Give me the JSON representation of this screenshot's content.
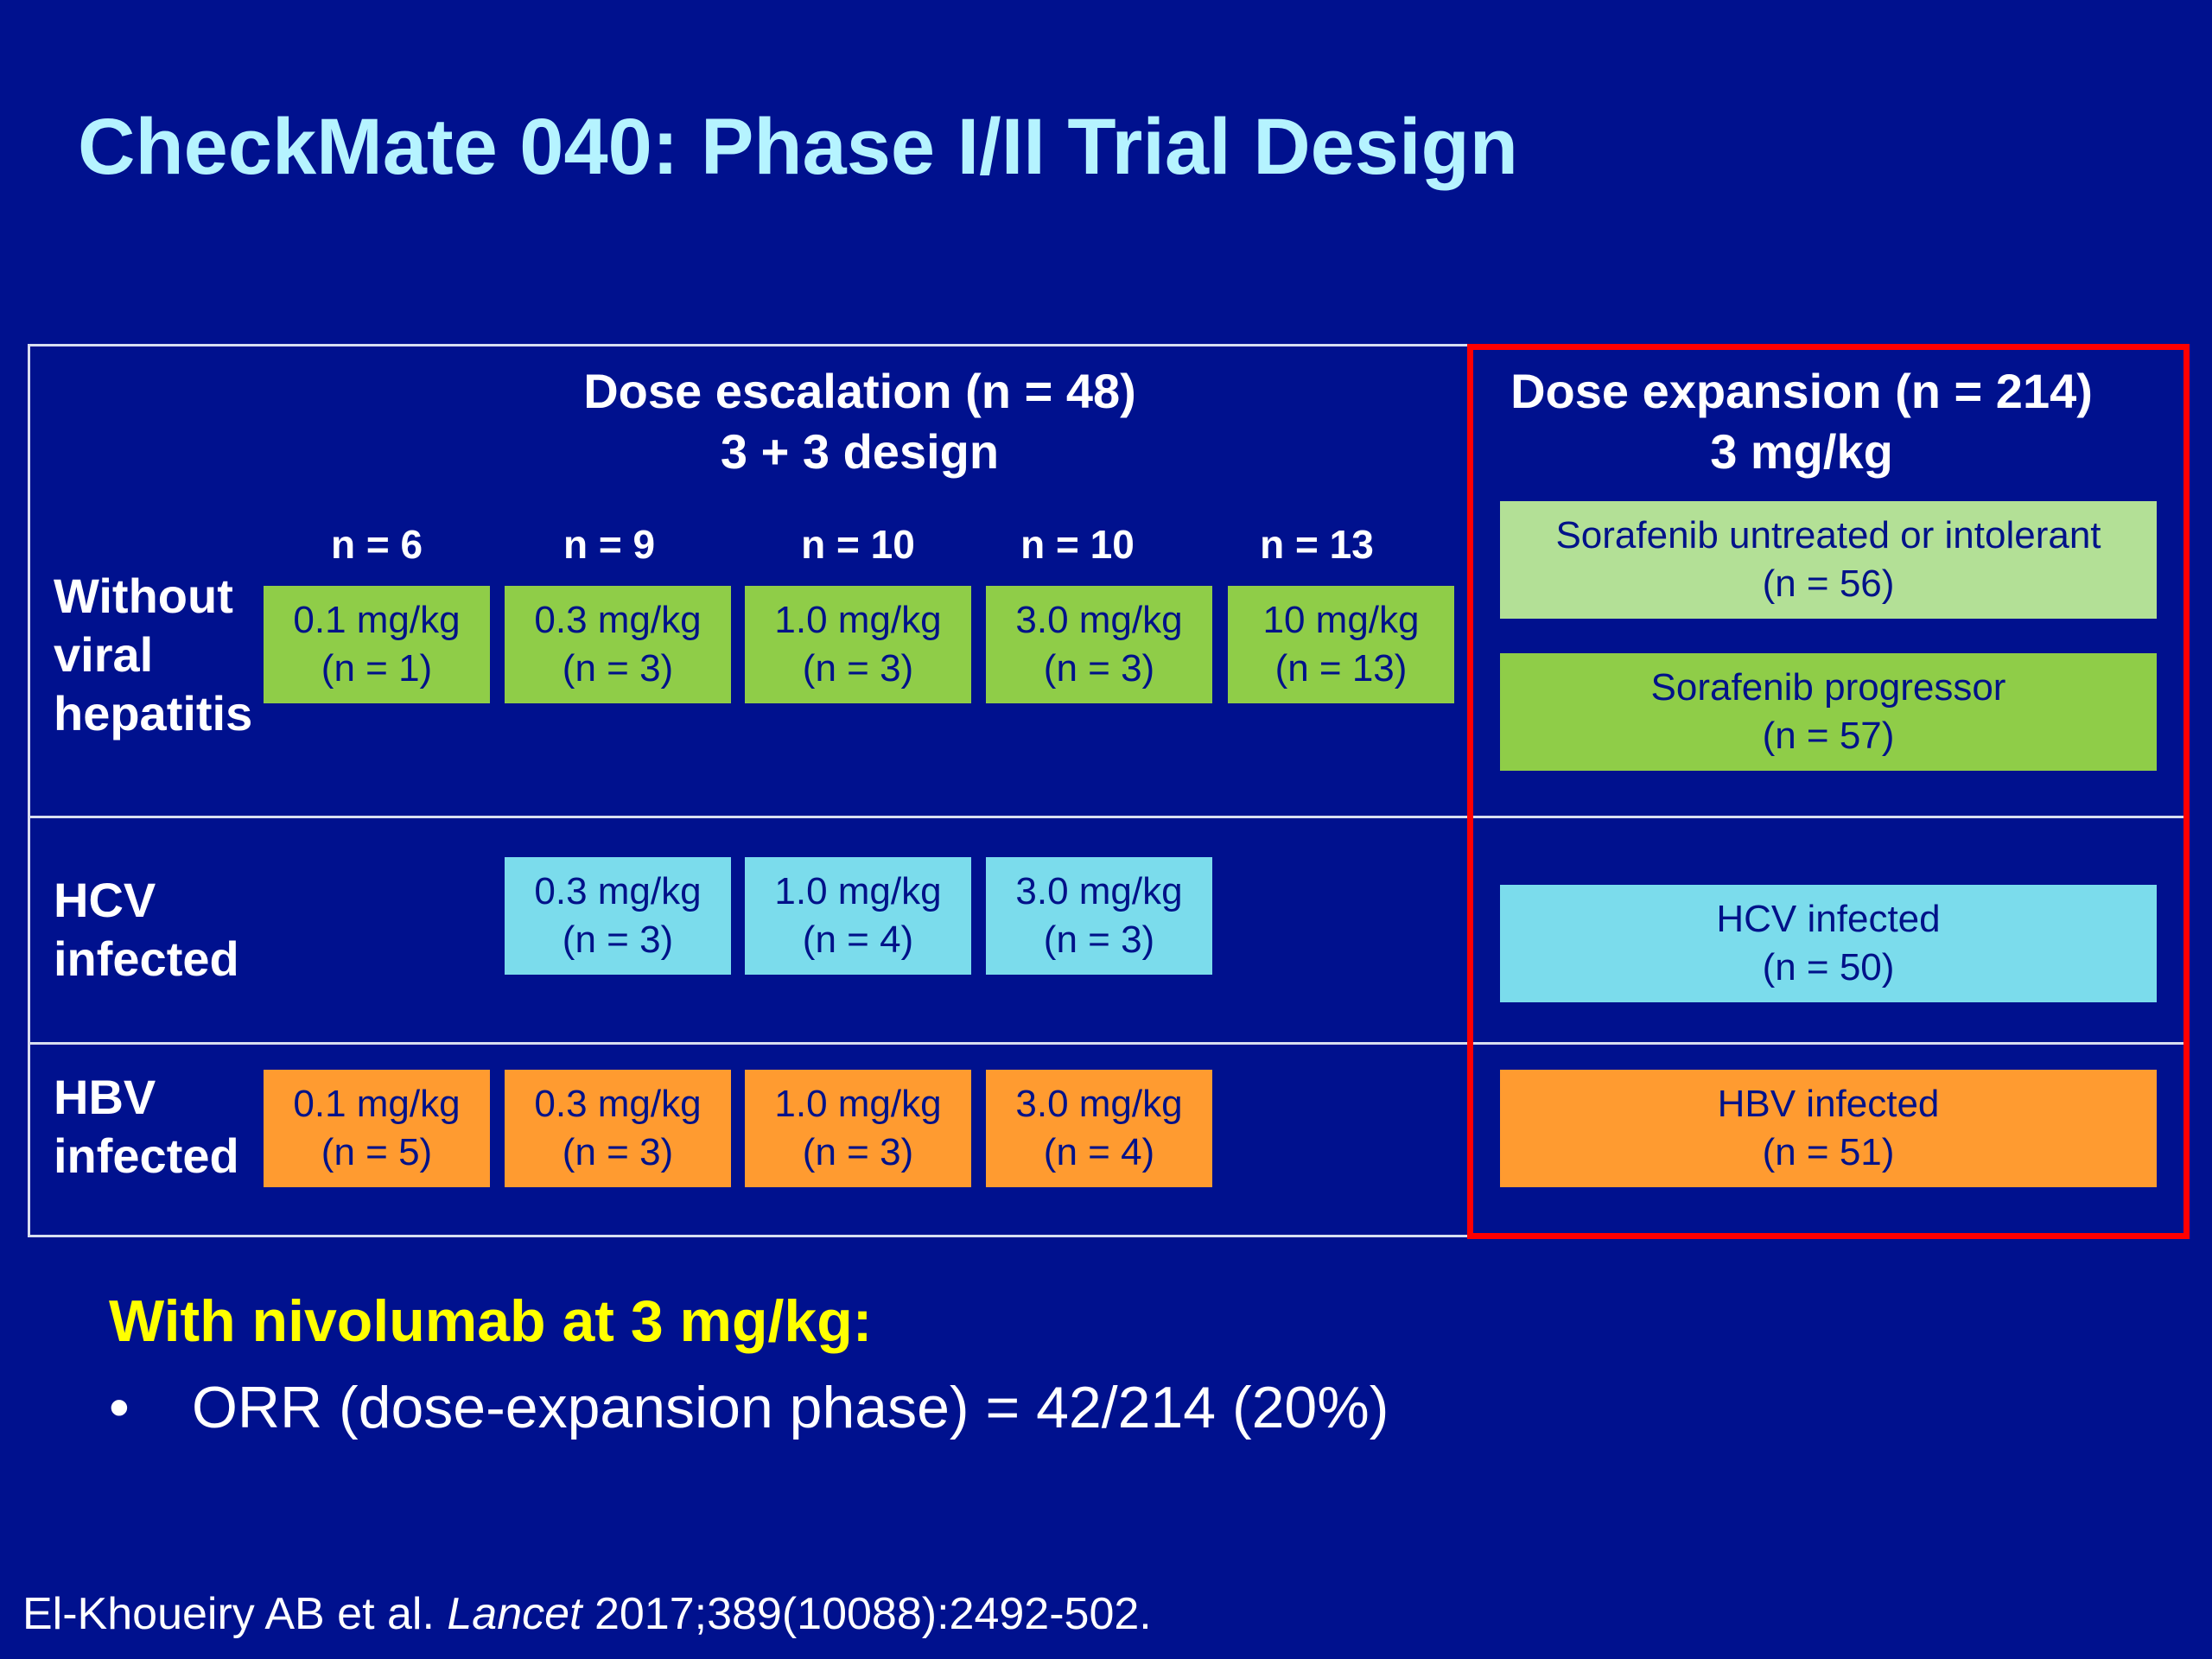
{
  "title": "CheckMate 040: Phase I/II Trial Design",
  "escalation": {
    "heading_line1": "Dose escalation (n = 48)",
    "heading_line2": "3 + 3 design",
    "cohort_n": [
      "n = 6",
      "n = 9",
      "n = 10",
      "n = 10",
      "n = 13"
    ],
    "rows": [
      {
        "label_lines": [
          "Without",
          "viral",
          "hepatitis"
        ],
        "color": "#8fcd48",
        "cells": [
          {
            "dose": "0.1 mg/kg",
            "n": "(n = 1)"
          },
          {
            "dose": "0.3 mg/kg",
            "n": "(n = 3)"
          },
          {
            "dose": "1.0 mg/kg",
            "n": "(n = 3)"
          },
          {
            "dose": "3.0 mg/kg",
            "n": "(n = 3)"
          },
          {
            "dose": "10 mg/kg",
            "n": "(n = 13)"
          }
        ]
      },
      {
        "label_lines": [
          "HCV",
          "infected"
        ],
        "color": "#7bdcec",
        "cells": [
          {
            "dose": "0.3 mg/kg",
            "n": "(n = 3)"
          },
          {
            "dose": "1.0 mg/kg",
            "n": "(n = 4)"
          },
          {
            "dose": "3.0 mg/kg",
            "n": "(n = 3)"
          }
        ]
      },
      {
        "label_lines": [
          "HBV",
          "infected"
        ],
        "color": "#ff9b30",
        "cells": [
          {
            "dose": "0.1 mg/kg",
            "n": "(n = 5)"
          },
          {
            "dose": "0.3 mg/kg",
            "n": "(n = 3)"
          },
          {
            "dose": "1.0 mg/kg",
            "n": "(n = 3)"
          },
          {
            "dose": "3.0 mg/kg",
            "n": "(n = 4)"
          }
        ]
      }
    ]
  },
  "expansion": {
    "heading_line1": "Dose expansion (n = 214)",
    "heading_line2": "3 mg/kg",
    "highlight_color": "#ff0000",
    "cohorts": [
      {
        "label": "Sorafenib untreated or intolerant",
        "n": "(n = 56)",
        "color": "#b3e096"
      },
      {
        "label": "Sorafenib progressor",
        "n": "(n = 57)",
        "color": "#8fcd48"
      },
      {
        "label": "HCV infected",
        "n": "(n = 50)",
        "color": "#7bdcec"
      },
      {
        "label": "HBV infected",
        "n": "(n = 51)",
        "color": "#ff9b30"
      }
    ]
  },
  "summary": {
    "heading": "With nivolumab at 3 mg/kg:",
    "bullet_symbol": "•",
    "bullets": [
      "ORR (dose-expansion phase) = 42/214 (20%)"
    ]
  },
  "citation": {
    "authors": "El-Khoueiry AB et al.",
    "journal": "Lancet",
    "details": "2017;389(10088):2492-502."
  }
}
